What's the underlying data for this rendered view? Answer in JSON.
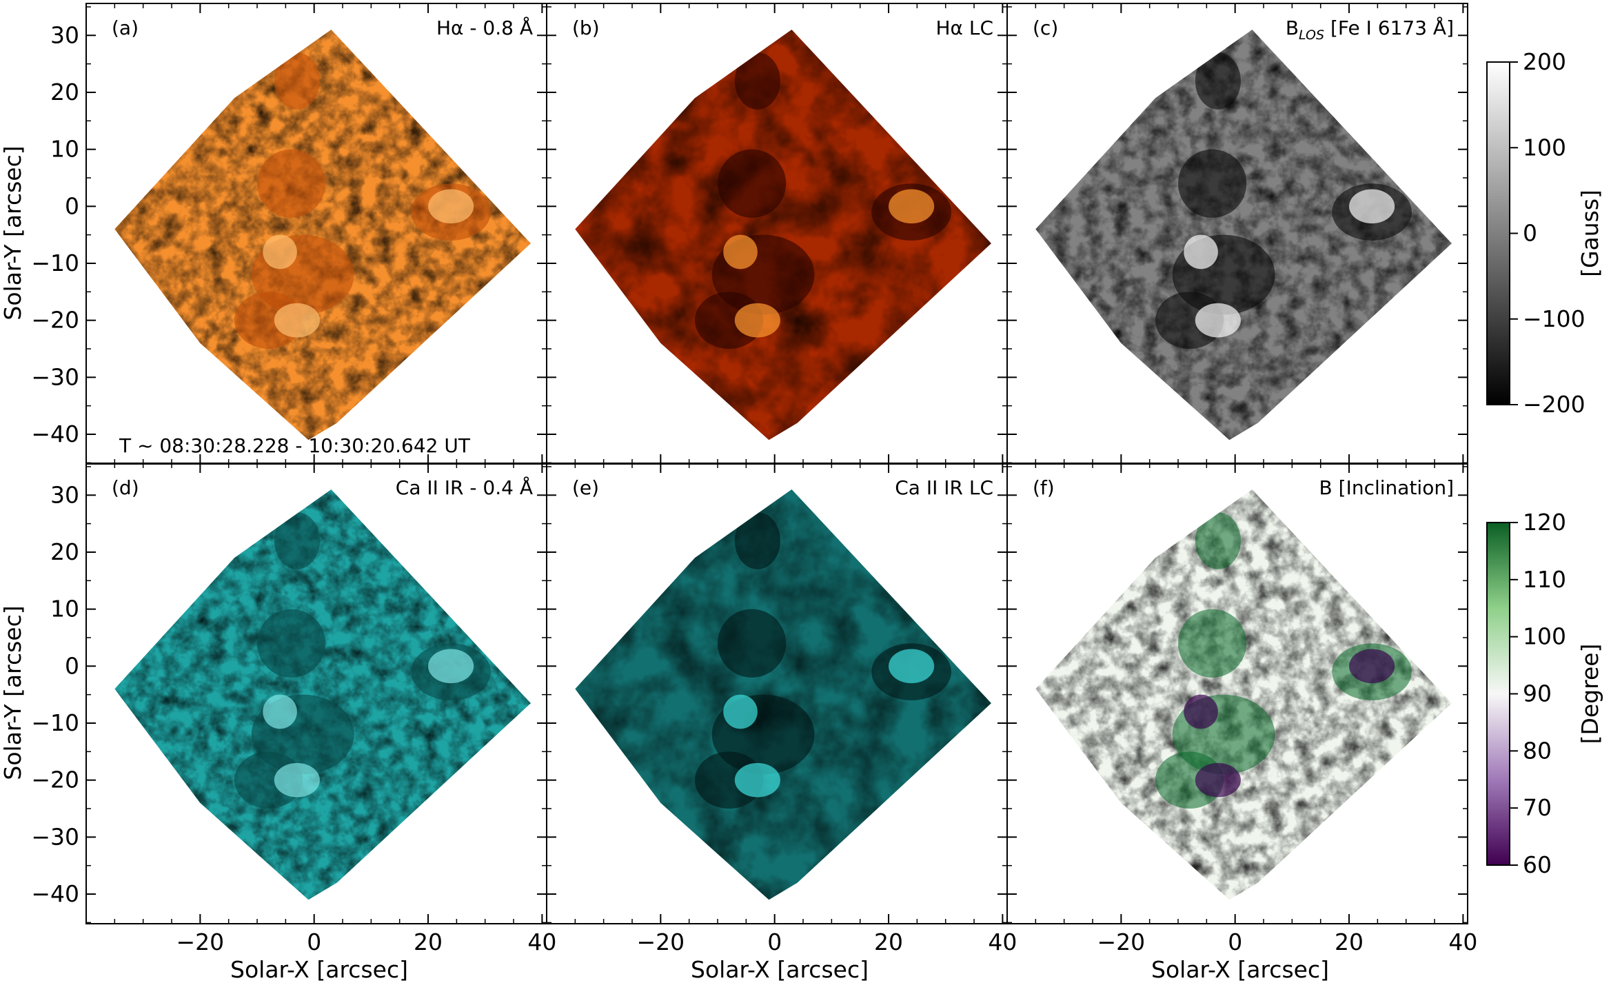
{
  "figure": {
    "x_axis_label": "Solar-X [arcsec]",
    "y_axis_label": "Solar-Y [arcsec]",
    "x_ticks": [
      -20,
      0,
      20,
      40
    ],
    "x_tick_labels": [
      "−20",
      "0",
      "20",
      "40"
    ],
    "y_ticks": [
      30,
      20,
      10,
      0,
      -10,
      -20,
      -30,
      -40
    ],
    "y_tick_labels": [
      "30",
      "20",
      "10",
      "0",
      "−10",
      "−20",
      "−30",
      "−40"
    ],
    "time_range": "T ~ 08:30:28.228 - 10:30:20.642 UT"
  },
  "panels": [
    {
      "id": "a",
      "letter": "(a)",
      "title": "Hα - 0.8 Å",
      "palette": [
        "#c1500a",
        "#e8781a",
        "#f6902e",
        "#ffc070"
      ]
    },
    {
      "id": "b",
      "letter": "(b)",
      "title": "Hα LC",
      "palette": [
        "#2a0400",
        "#6a1200",
        "#a82800",
        "#ff9a30"
      ]
    },
    {
      "id": "c",
      "letter": "(c)",
      "title_prefix": "B",
      "title_sub": "LOS",
      "title_suffix": " [Fe I 6173 Å]",
      "palette": [
        "#0c0c0c",
        "#7f7f7f",
        "#828282",
        "#f8f8f8"
      ]
    },
    {
      "id": "d",
      "letter": "(d)",
      "title": "Ca II IR - 0.4 Å",
      "palette": [
        "#084848",
        "#158c8c",
        "#1fa4a4",
        "#80e4e4"
      ]
    },
    {
      "id": "e",
      "letter": "(e)",
      "title": "Ca II IR LC",
      "palette": [
        "#021616",
        "#0b3d3d",
        "#137070",
        "#3fdede"
      ]
    },
    {
      "id": "f",
      "letter": "(f)",
      "title": "B [Inclination]",
      "palette": [
        "#3a0850",
        "#f8f4f8",
        "#f0f6ee",
        "#0a6a2a"
      ]
    }
  ],
  "colorbars": [
    {
      "id": "gauss",
      "label": "[Gauss]",
      "ticks": [
        200,
        100,
        0,
        -100,
        -200
      ],
      "tick_labels": [
        "200",
        "100",
        "0",
        "−100",
        "−200"
      ],
      "range": [
        -200,
        200
      ],
      "colors": [
        "#000000",
        "#ffffff"
      ]
    },
    {
      "id": "degree",
      "label": "[Degree]",
      "ticks": [
        120,
        110,
        100,
        90,
        80,
        70,
        60
      ],
      "tick_labels": [
        "120",
        "110",
        "100",
        "90",
        "80",
        "70",
        "60"
      ],
      "range": [
        60,
        120
      ],
      "colors": [
        "#3f0050",
        "#a07ab8",
        "#f7f7f7",
        "#8fd08a",
        "#0b5f24"
      ]
    }
  ]
}
